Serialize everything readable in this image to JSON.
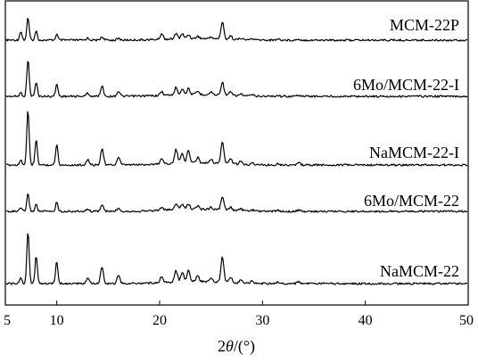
{
  "chart_data": {
    "type": "line",
    "title": "",
    "xlabel_prefix": "2",
    "xlabel_symbol": "θ",
    "xlabel_suffix": "/(°)",
    "ylabel": "",
    "xlim": [
      5,
      50
    ],
    "xticks": [
      5,
      10,
      20,
      30,
      40,
      50
    ],
    "grid": false,
    "legend": "none",
    "peaks_deg": [
      6.5,
      7.2,
      8.0,
      10.0,
      13.0,
      14.4,
      16.0,
      20.2,
      21.6,
      22.2,
      22.8,
      23.7,
      25.0,
      26.1,
      26.9,
      27.9,
      29.0,
      31.5,
      33.5
    ],
    "series": [
      {
        "name": "MCM-22P",
        "intensities": [
          22,
          55,
          22,
          14,
          5,
          8,
          4,
          14,
          13,
          12,
          10,
          6,
          5,
          42,
          9,
          4,
          3,
          3,
          3
        ]
      },
      {
        "name": "6Mo/MCM-22-I",
        "intensities": [
          8,
          80,
          30,
          26,
          7,
          22,
          11,
          8,
          16,
          13,
          13,
          7,
          6,
          28,
          7,
          4,
          3,
          2,
          3
        ]
      },
      {
        "name": "NaMCM-22-I",
        "intensities": [
          10,
          100,
          45,
          38,
          10,
          30,
          14,
          10,
          25,
          18,
          22,
          10,
          8,
          40,
          10,
          5,
          4,
          3,
          4
        ]
      },
      {
        "name": "6Mo/MCM-22",
        "intensities": [
          6,
          30,
          12,
          16,
          4,
          11,
          6,
          5,
          11,
          9,
          9,
          5,
          4,
          22,
          5,
          3,
          2,
          2,
          2
        ]
      },
      {
        "name": "NaMCM-22",
        "intensities": [
          10,
          95,
          50,
          40,
          10,
          30,
          14,
          11,
          20,
          18,
          20,
          10,
          8,
          45,
          10,
          5,
          4,
          3,
          4
        ]
      }
    ]
  }
}
